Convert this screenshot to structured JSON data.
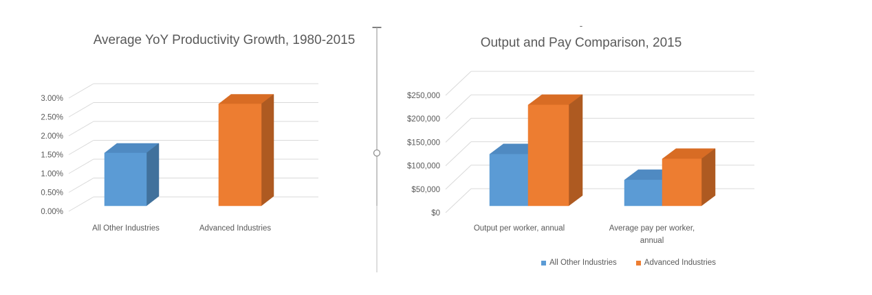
{
  "ui": {
    "background": "#ffffff",
    "divider": {
      "color": "#a6a6a6",
      "handle": "circle-resize-handle"
    }
  },
  "annotations": {
    "fragment": "-"
  },
  "palette": {
    "blue": {
      "front": "#5b9bd5",
      "top": "#4f8ac2",
      "side": "#41719c"
    },
    "orange": {
      "front": "#ed7d31",
      "top": "#d86c24",
      "side": "#ae5a21"
    }
  },
  "chart_data": [
    {
      "type": "bar",
      "style": "3d-column",
      "title": "Average YoY Productivity Growth, 1980-2015",
      "categories": [
        "All Other Industries",
        "Advanced Industries"
      ],
      "values": [
        1.4,
        2.7
      ],
      "value_unit": "percent YoY growth",
      "point_palette": [
        "blue",
        "orange"
      ],
      "ylim": [
        0,
        3
      ],
      "ytick_values": [
        0,
        0.5,
        1,
        1.5,
        2,
        2.5,
        3
      ],
      "ytick_labels": [
        "0.00%",
        "0.50%",
        "1.00%",
        "1.50%",
        "2.00%",
        "2.50%",
        "3.00%"
      ],
      "grid": true,
      "legend": "none",
      "title_color": "#595959",
      "axis_text_color": "#595959",
      "gridline_color": "#d9d9d9"
    },
    {
      "type": "bar",
      "style": "3d-column",
      "title": "Output and Pay Comparison, 2015",
      "categories": [
        "Output per worker, annual",
        "Average pay per worker, annual"
      ],
      "series": [
        {
          "name": "All Other Industries",
          "palette": "blue",
          "values": [
            110000,
            55000
          ]
        },
        {
          "name": "Advanced Industries",
          "palette": "orange",
          "values": [
            215000,
            100000
          ]
        }
      ],
      "value_unit": "USD",
      "ylim": [
        0,
        250000
      ],
      "ytick_values": [
        0,
        50000,
        100000,
        150000,
        200000,
        250000
      ],
      "ytick_labels": [
        "$0",
        "$50,000",
        "$100,000",
        "$150,000",
        "$200,000",
        "$250,000"
      ],
      "grid": true,
      "legend": "bottom",
      "title_color": "#595959",
      "axis_text_color": "#595959",
      "gridline_color": "#d9d9d9"
    }
  ]
}
